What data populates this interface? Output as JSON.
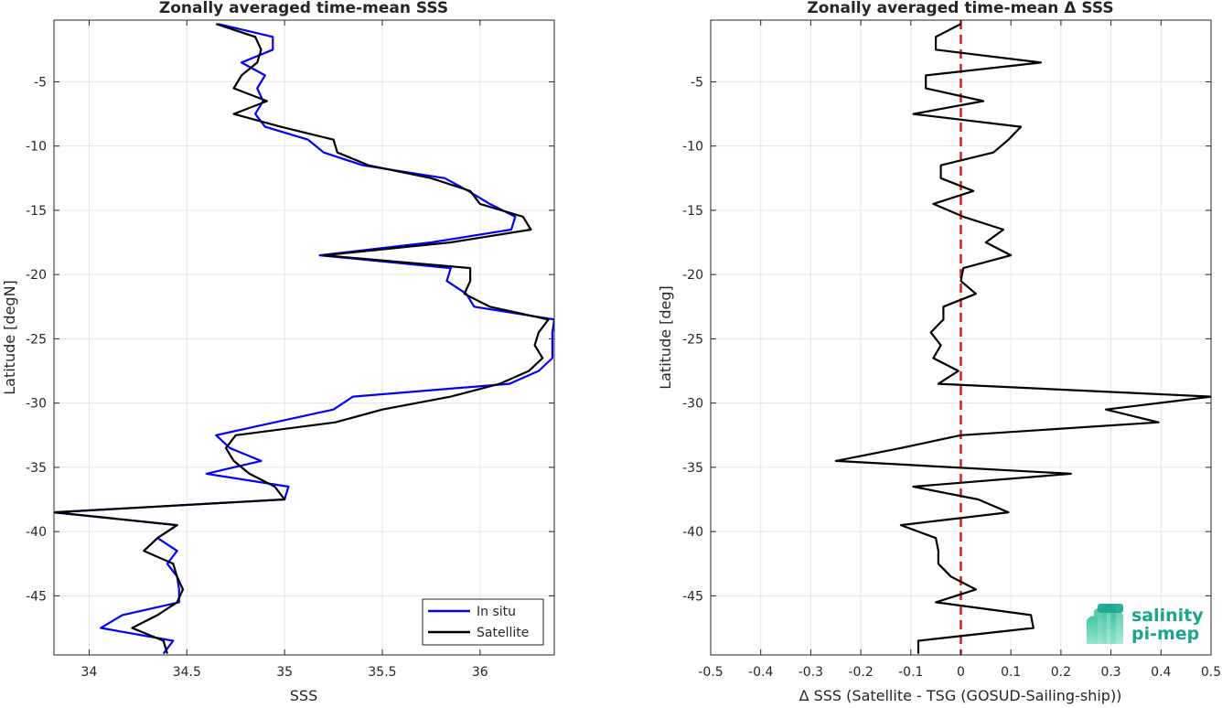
{
  "chart_data": [
    {
      "type": "line",
      "title": "Zonally averaged time-mean SSS",
      "xlabel": "SSS",
      "ylabel": "Latitude [degN]",
      "xlim": [
        33.82,
        36.38
      ],
      "ylim": [
        -49.6,
        -0.2
      ],
      "xticks": [
        34,
        34.5,
        35,
        35.5,
        36
      ],
      "xtick_labels": [
        "34",
        "34.5",
        "35",
        "35.5",
        "36"
      ],
      "yticks": [
        -5,
        -10,
        -15,
        -20,
        -25,
        -30,
        -35,
        -40,
        -45
      ],
      "ytick_labels": [
        "-5",
        "-10",
        "-15",
        "-20",
        "-25",
        "-30",
        "-35",
        "-40",
        "-45"
      ],
      "grid": true,
      "legend": "bottom-right",
      "series": [
        {
          "name": "In situ",
          "color": "#0000ff",
          "lat": [
            -0.5,
            -1.5,
            -2.5,
            -3.5,
            -4.5,
            -5.5,
            -6.5,
            -7.5,
            -8.5,
            -9.5,
            -10.5,
            -11.5,
            -12.5,
            -13.5,
            -14.5,
            -15.5,
            -16.5,
            -17.5,
            -18.5,
            -19.5,
            -20.5,
            -21.5,
            -22.5,
            -23.5,
            -24.5,
            -25.5,
            -26.5,
            -27.5,
            -28.5,
            -29.5,
            -30.5,
            -31.5,
            -32.5,
            -33.5,
            -34.5,
            -35.5,
            -36.5,
            -37.5,
            -38.5,
            -39.5,
            -40.5,
            -41.5,
            -42.5,
            -43.5,
            -44.5,
            -45.5,
            -46.5,
            -47.5,
            -48.5,
            -49.5
          ],
          "sss": [
            34.66,
            34.94,
            34.94,
            34.78,
            34.9,
            34.86,
            34.89,
            34.85,
            34.9,
            35.12,
            35.2,
            35.4,
            35.82,
            35.94,
            36.05,
            36.18,
            36.16,
            35.75,
            35.18,
            35.85,
            35.83,
            35.93,
            35.97,
            36.38,
            36.37,
            36.37,
            36.37,
            36.3,
            36.15,
            35.35,
            35.25,
            34.95,
            34.65,
            34.72,
            34.88,
            34.6,
            35.02,
            35.0,
            33.82,
            34.45,
            34.35,
            34.45,
            34.4,
            34.45,
            34.46,
            34.46,
            34.17,
            34.06,
            34.43,
            34.38
          ]
        },
        {
          "name": "Satellite",
          "color": "#000000",
          "lat": [
            -0.5,
            -1.5,
            -2.5,
            -3.5,
            -4.5,
            -5.5,
            -6.5,
            -7.5,
            -8.5,
            -9.5,
            -10.5,
            -11.5,
            -12.5,
            -13.5,
            -14.5,
            -15.5,
            -16.5,
            -17.5,
            -18.5,
            -19.5,
            -20.5,
            -21.5,
            -22.5,
            -23.5,
            -24.5,
            -25.5,
            -26.5,
            -27.5,
            -28.5,
            -29.5,
            -30.5,
            -31.5,
            -32.5,
            -33.5,
            -34.5,
            -35.5,
            -36.5,
            -37.5,
            -38.5,
            -39.5,
            -40.5,
            -41.5,
            -42.5,
            -43.5,
            -44.5,
            -45.5,
            -46.5,
            -47.5,
            -48.5,
            -49.5
          ],
          "sss": [
            34.65,
            34.85,
            34.88,
            34.86,
            34.78,
            34.74,
            34.91,
            34.74,
            34.98,
            35.25,
            35.27,
            35.43,
            35.75,
            35.95,
            36.0,
            36.22,
            36.26,
            35.85,
            35.2,
            35.95,
            35.95,
            35.92,
            36.05,
            36.35,
            36.3,
            36.28,
            36.32,
            36.25,
            36.1,
            35.85,
            35.5,
            35.26,
            34.75,
            34.7,
            34.74,
            34.82,
            34.95,
            35.0,
            33.82,
            34.45,
            34.35,
            34.28,
            34.43,
            34.45,
            34.48,
            34.45,
            34.35,
            34.22,
            34.38,
            34.4
          ]
        }
      ]
    },
    {
      "type": "line",
      "title": "Zonally averaged time-mean Δ SSS",
      "xlabel": "Δ SSS (Satellite - TSG (GOSUD-Sailing-ship))",
      "ylabel": "Latitude [deg]",
      "xlim": [
        -0.5,
        0.5
      ],
      "ylim": [
        -49.6,
        -0.2
      ],
      "xticks": [
        -0.5,
        -0.4,
        -0.3,
        -0.2,
        -0.1,
        0,
        0.1,
        0.2,
        0.3,
        0.4,
        0.5
      ],
      "xtick_labels": [
        "-0.5",
        "-0.4",
        "-0.3",
        "-0.2",
        "-0.1",
        "0",
        "0.1",
        "0.2",
        "0.3",
        "0.4",
        "0.5"
      ],
      "yticks": [
        -5,
        -10,
        -15,
        -20,
        -25,
        -30,
        -35,
        -40,
        -45
      ],
      "ytick_labels": [
        "-5",
        "-10",
        "-15",
        "-20",
        "-25",
        "-30",
        "-35",
        "-40",
        "-45"
      ],
      "grid": true,
      "reference_line": {
        "x": 0,
        "color": "#e31a1c",
        "style": "dashed"
      },
      "series": [
        {
          "color": "#000000",
          "lat": [
            -0.5,
            -1.5,
            -2.5,
            -3.5,
            -4.5,
            -5.5,
            -6.5,
            -7.5,
            -8.5,
            -9.5,
            -10.5,
            -11.5,
            -12.5,
            -13.5,
            -14.5,
            -15.5,
            -16.5,
            -17.5,
            -18.5,
            -19.5,
            -20.5,
            -21.5,
            -22.5,
            -23.5,
            -24.5,
            -25.5,
            -26.5,
            -27.5,
            -28.5,
            -29.5,
            -30.5,
            -31.5,
            -32.5,
            -33.5,
            -34.5,
            -35.5,
            -36.5,
            -37.5,
            -38.5,
            -39.5,
            -40.5,
            -41.5,
            -42.5,
            -43.5,
            -44.5,
            -45.5,
            -46.5,
            -47.5,
            -48.5,
            -49.5
          ],
          "dsss": [
            0,
            -0.05,
            -0.05,
            0.16,
            -0.07,
            -0.07,
            0.045,
            -0.095,
            0.12,
            0.095,
            0.065,
            -0.04,
            -0.04,
            0.025,
            -0.055,
            0.005,
            0.085,
            0.05,
            0.1,
            0.005,
            0.0,
            0.03,
            -0.035,
            -0.035,
            -0.06,
            -0.04,
            -0.055,
            -0.005,
            -0.045,
            0.5,
            0.29,
            0.395,
            0.0,
            -0.12,
            -0.25,
            0.22,
            -0.095,
            0.035,
            0.095,
            -0.12,
            -0.05,
            -0.045,
            -0.045,
            -0.02,
            0.03,
            -0.05,
            0.14,
            0.145,
            -0.085,
            -0.085
          ]
        }
      ]
    }
  ],
  "logo": {
    "line1": "salinity",
    "line2": "pi-mep",
    "color": "#1aa58c"
  }
}
